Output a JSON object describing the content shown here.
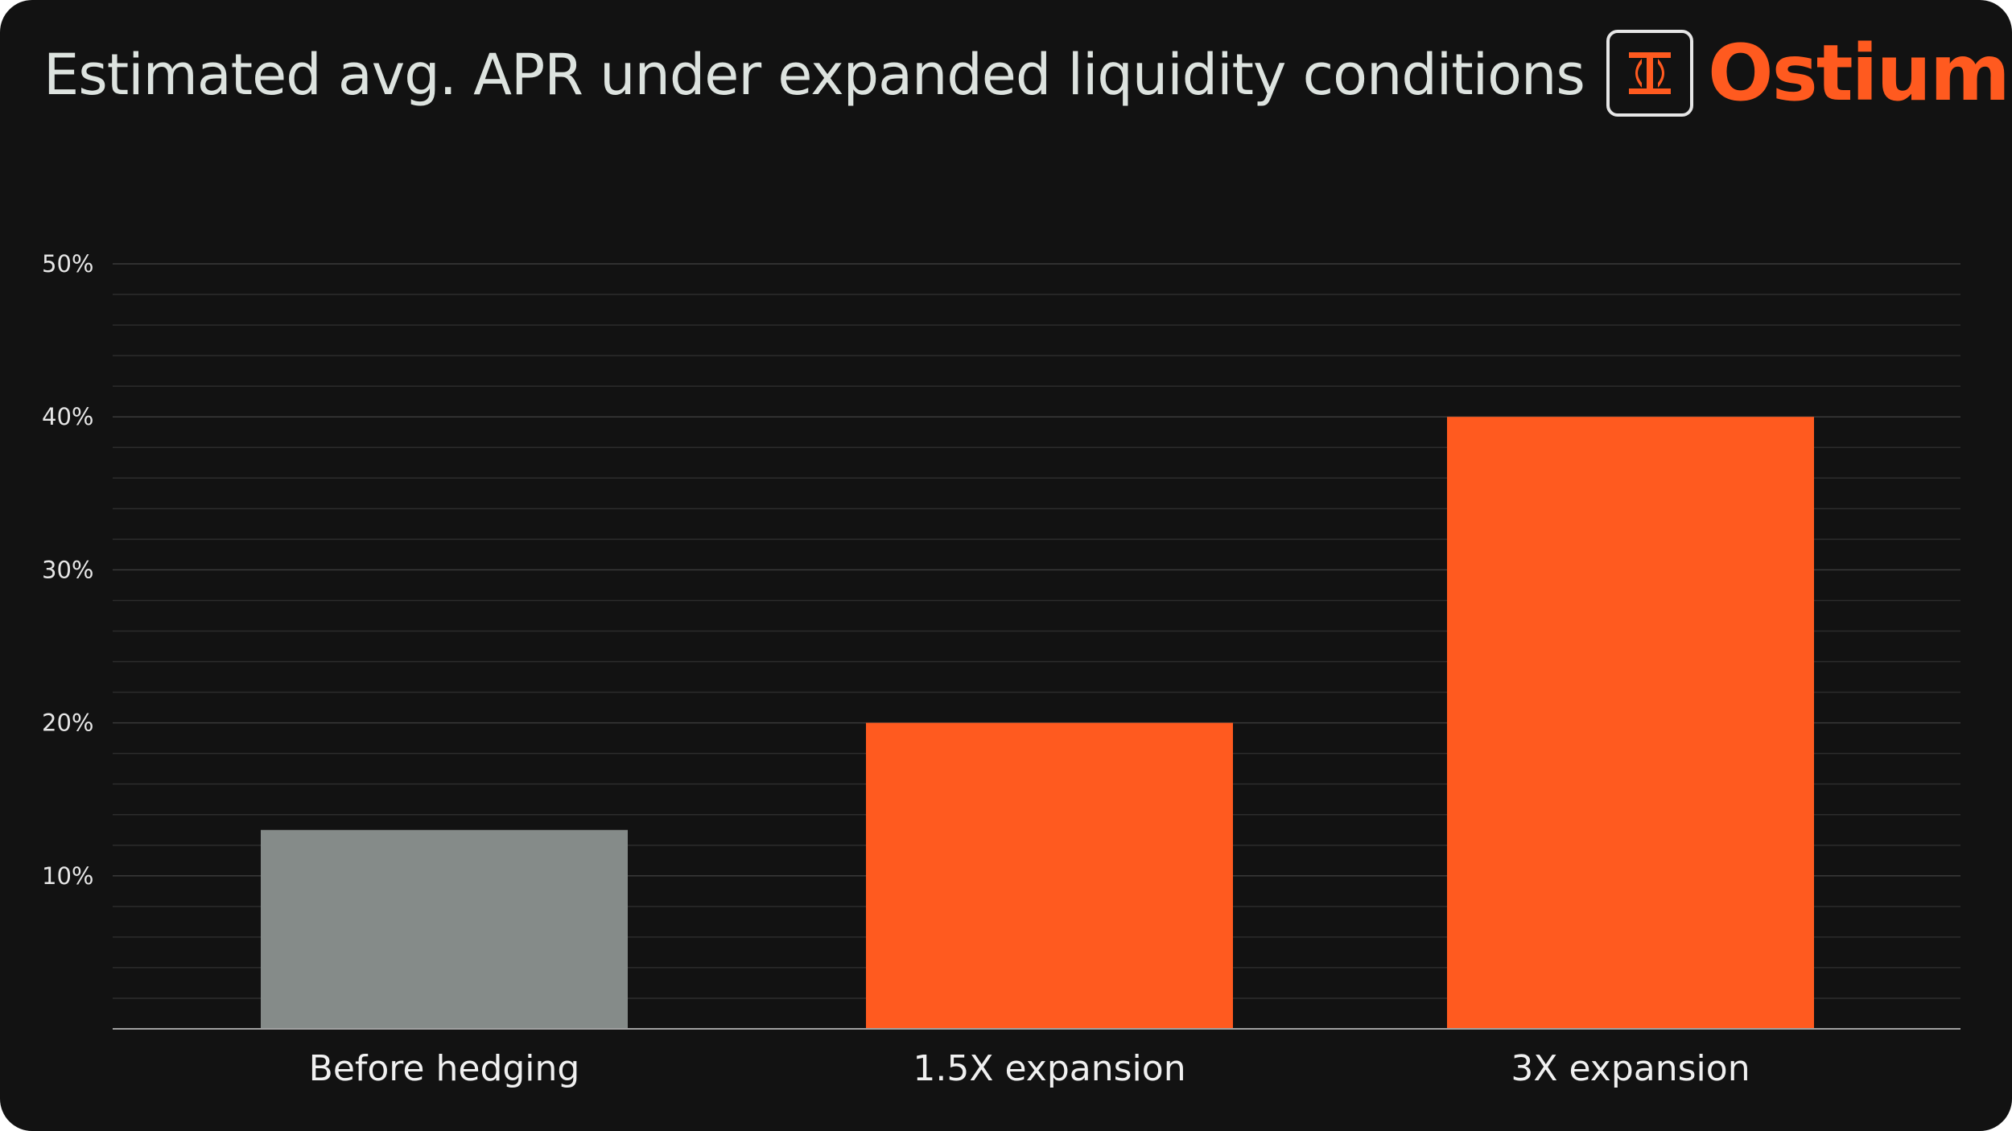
{
  "brand": {
    "name": "Ostium",
    "accent": "#ff5a1f",
    "icon": "ostium-logo-icon"
  },
  "chart_data": {
    "type": "bar",
    "title": "Estimated avg. APR under expanded liquidity conditions",
    "categories": [
      "Before hedging",
      "1.5X expansion",
      "3X expansion"
    ],
    "values": [
      13,
      20,
      40
    ],
    "colors": [
      "#858b89",
      "#ff5a1f",
      "#ff5a1f"
    ],
    "yticks": [
      "10%",
      "20%",
      "30%",
      "40%",
      "50%"
    ],
    "ytick_values": [
      10,
      20,
      30,
      40,
      50
    ],
    "ylim": [
      0,
      50
    ],
    "xlabel": "",
    "ylabel": "",
    "grid": true,
    "gridline_step": 2,
    "background": "#121212"
  }
}
